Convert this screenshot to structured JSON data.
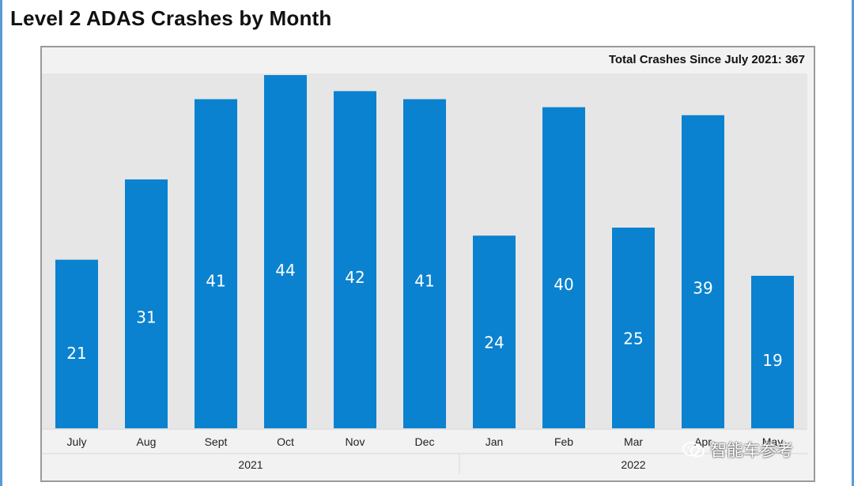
{
  "title": "Level 2 ADAS Crashes by Month",
  "total_label": "Total Crashes Since July 2021: 367",
  "watermark_text": "智能车参考",
  "colors": {
    "bar": "#0a82d0",
    "plot_bg": "#e6e6e6",
    "frame_bg": "#f2f2f2",
    "label": "#ffffff"
  },
  "chart_data": {
    "type": "bar",
    "title": "Level 2 ADAS Crashes by Month",
    "annotation": "Total Crashes Since July 2021: 367",
    "categories": [
      "July",
      "Aug",
      "Sept",
      "Oct",
      "Nov",
      "Dec",
      "Jan",
      "Feb",
      "Mar",
      "Apr",
      "May"
    ],
    "values": [
      21,
      31,
      41,
      44,
      42,
      41,
      24,
      40,
      25,
      39,
      19
    ],
    "year_groups": [
      {
        "label": "2021",
        "start": 0,
        "end": 5
      },
      {
        "label": "2022",
        "start": 6,
        "end": 10
      }
    ],
    "ylim": [
      0,
      44
    ],
    "xlabel": "",
    "ylabel": "",
    "grid": false,
    "legend": "none",
    "data_labels": true
  }
}
